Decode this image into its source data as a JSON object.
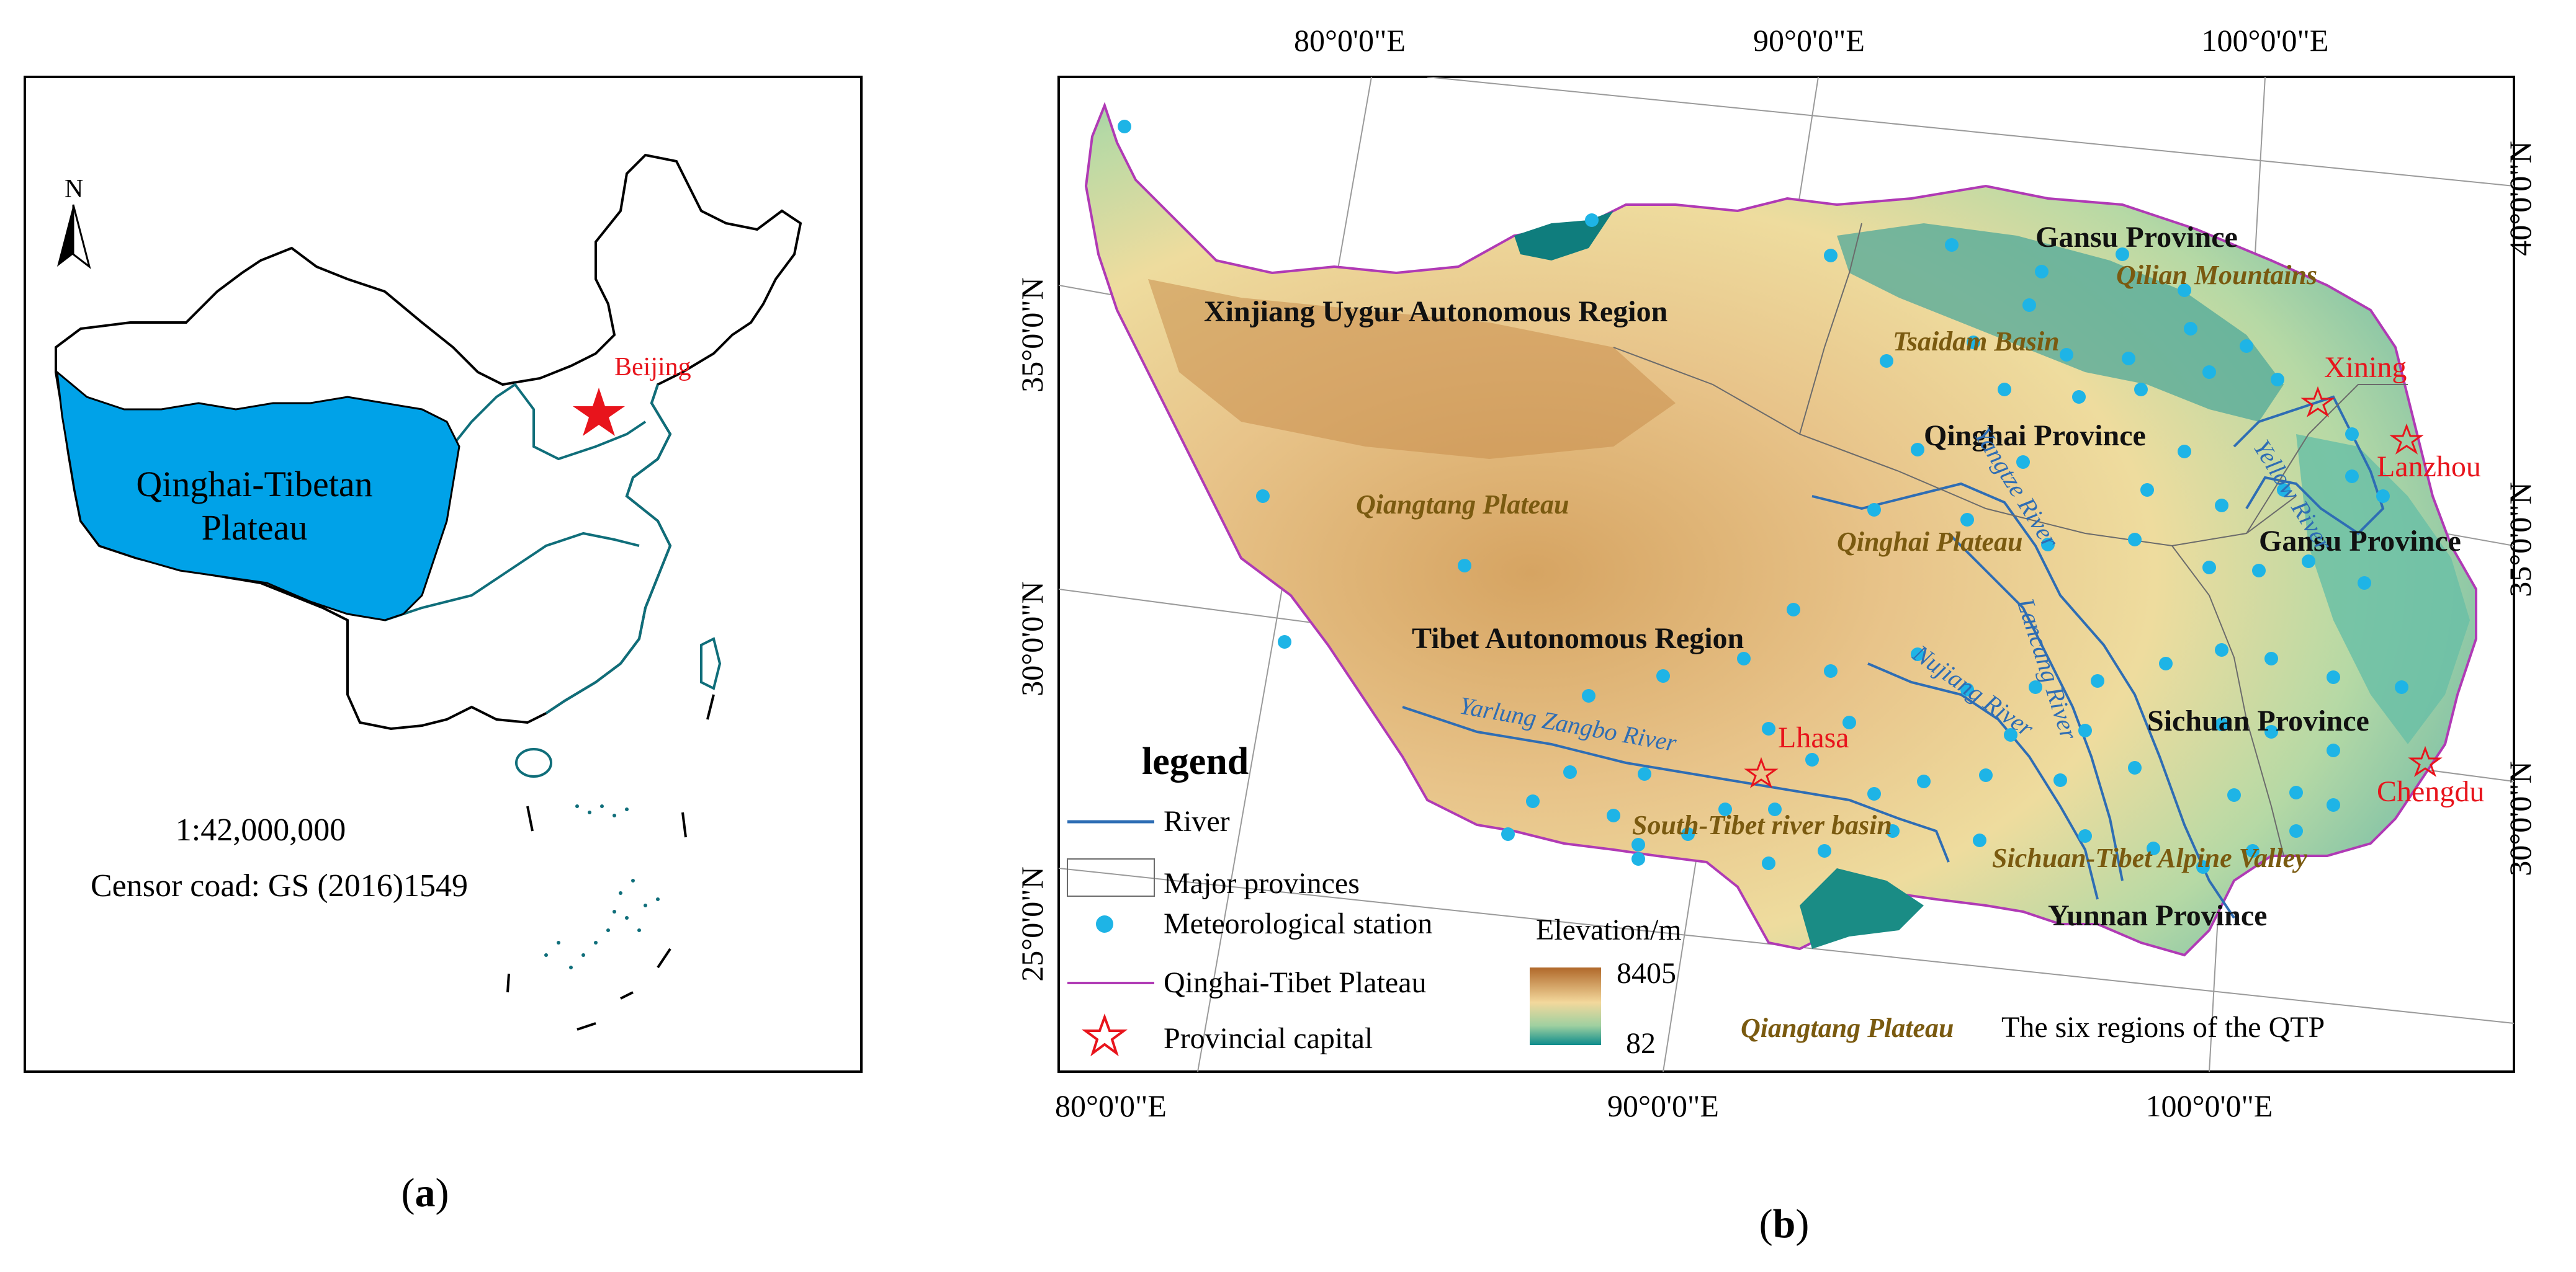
{
  "panel_a": {
    "north_label": "N",
    "capital_label": "Beijing",
    "region_label_line1": "Qinghai-Tibetan",
    "region_label_line2": "Plateau",
    "scale_text": "1:42,000,000",
    "censor_text": "Censor coad: GS (2016)1549",
    "caption_open": "(",
    "caption_letter": "a",
    "caption_close": ")",
    "colors": {
      "plateau_fill": "#00A2E8",
      "outline": "#000000",
      "coast": "#0F6E7A",
      "capital_star": "#E8141C"
    }
  },
  "panel_b": {
    "top_lon_ticks": [
      "80°0'0\"E",
      "90°0'0\"E",
      "100°0'0\"E"
    ],
    "bottom_lon_ticks": [
      "80°0'0\"E",
      "90°0'0\"E",
      "100°0'0\"E"
    ],
    "left_lat_ticks": [
      "35°0'0\"N",
      "30°0'0\"N",
      "25°0'0\"N"
    ],
    "right_lat_ticks": [
      "40°0'0\"N",
      "35°0'0\"N",
      "30°0'0\"N"
    ],
    "provinces": [
      "Gansu Province",
      "Xinjiang Uygur Autonomous Region",
      "Qinghai Province",
      "Gansu Province",
      "Tibet Autonomous Region",
      "Sichuan Province",
      "Yunnan Province"
    ],
    "regions": [
      "Qilian Mountains",
      "Tsaidam Basin",
      "Qiangtang Plateau",
      "Qinghai Plateau",
      "South-Tibet river basin",
      "Sichuan-Tibet Alpine Valley"
    ],
    "rivers": [
      "Yangtze River",
      "Yellow River",
      "Nujiang River",
      "Lancang River",
      "Yarlung Zangbo River"
    ],
    "capitals": [
      "Xining",
      "Lanzhou",
      "Lhasa",
      "Chengdu"
    ],
    "legend": {
      "title": "legend",
      "items": [
        "River",
        "Major provinces",
        "Meteorological station",
        "Qinghai-Tibet Plateau",
        "Provincial capital"
      ],
      "elevation_title": "Elevation/m",
      "elevation_max": "8405",
      "elevation_min": "82",
      "region_sample": "Qiangtang Plateau",
      "region_sample_desc": "The six regions of the QTP"
    },
    "caption_open": "(",
    "caption_letter": "b",
    "caption_close": ")",
    "colors": {
      "river": "#2E6DB4",
      "boundary": "#B03AB5",
      "station": "#1EB4E6",
      "capital": "#E8141C",
      "region_text": "#7A5A10",
      "elev_high": "#B06A2A",
      "elev_mid": "#F2D79A",
      "elev_low": "#0E8C8C"
    }
  }
}
